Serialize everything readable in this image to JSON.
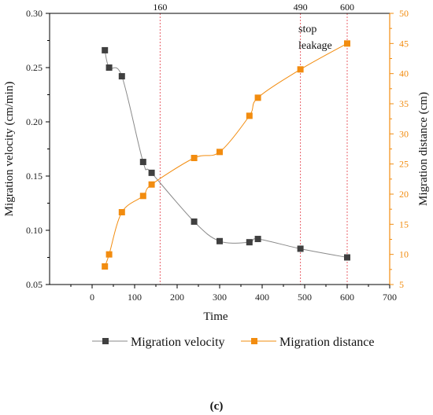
{
  "chart_data": {
    "type": "line",
    "xlabel": "Time",
    "ylabel": "Migration velocity (cm/min)",
    "y2label": "Migration distance (cm)",
    "xlim": [
      -100,
      700
    ],
    "xticks": [
      0,
      100,
      200,
      300,
      400,
      500,
      600,
      700
    ],
    "ylim": [
      0.05,
      0.3
    ],
    "yticks": [
      "0.05",
      "0.10",
      "0.15",
      "0.20",
      "0.25",
      "0.30"
    ],
    "y2lim": [
      5,
      50
    ],
    "y2ticks": [
      5,
      10,
      15,
      20,
      25,
      30,
      35,
      40,
      45,
      50
    ],
    "vertical_lines": [
      {
        "x": 160,
        "label": "160"
      },
      {
        "x": 490,
        "label": "490"
      },
      {
        "x": 600,
        "label": "600"
      }
    ],
    "annotations": [
      "stop",
      "leakage"
    ],
    "legend_position": "bottom",
    "caption": "(c)",
    "series": [
      {
        "name": "Migration velocity",
        "axis": "left",
        "color": "#404040",
        "marker": "square",
        "x": [
          30,
          40,
          70,
          120,
          140,
          240,
          300,
          370,
          390,
          490,
          600
        ],
        "y": [
          0.266,
          0.25,
          0.242,
          0.163,
          0.153,
          0.108,
          0.09,
          0.089,
          0.092,
          0.083,
          0.075
        ]
      },
      {
        "name": "Migration distance",
        "axis": "right",
        "color": "#F28C0F",
        "marker": "square",
        "x": [
          30,
          40,
          70,
          120,
          140,
          240,
          300,
          370,
          390,
          490,
          600
        ],
        "y": [
          8.0,
          10.0,
          17.0,
          19.7,
          21.6,
          26.0,
          27.0,
          33.0,
          36.0,
          40.7,
          45.0
        ]
      }
    ]
  }
}
